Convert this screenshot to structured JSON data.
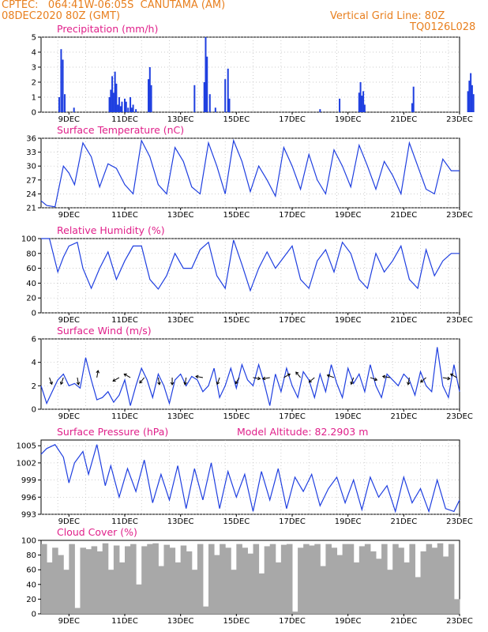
{
  "header": {
    "line1_left": "CPTEC:   064:41W-06:05S  CANUTAMA (AM)",
    "line2_left": "08DEC2020 80Z (GMT)",
    "line2_right": "Vertical Grid Line: 80Z",
    "line3_right": "TQ0126L028"
  },
  "colors": {
    "header": "#e87f1e",
    "title": "#e0208a",
    "line": "#1f3fe0",
    "cloud": "#a8a8a8",
    "grid": "#bbbbbb"
  },
  "chart_data": [
    {
      "type": "bar",
      "title": "Precipitation (mm/h)",
      "ylim": [
        0,
        5
      ],
      "yticks": [
        0,
        1,
        2,
        3,
        4,
        5
      ],
      "xticks": [
        "9DEC",
        "11DEC",
        "13DEC",
        "15DEC",
        "17DEC",
        "19DEC",
        "21DEC",
        "23DEC"
      ],
      "x": [
        0.65,
        0.72,
        0.78,
        0.85,
        1.18,
        2.45,
        2.5,
        2.55,
        2.6,
        2.65,
        2.7,
        2.75,
        2.8,
        2.85,
        2.9,
        3.0,
        3.05,
        3.12,
        3.2,
        3.25,
        3.3,
        3.4,
        3.85,
        3.9,
        3.95,
        5.5,
        5.85,
        5.9,
        5.95,
        6.05,
        6.25,
        6.6,
        6.7,
        6.75,
        10.0,
        10.7,
        11.4,
        11.45,
        11.5,
        11.55,
        11.6,
        13.3,
        13.35,
        15.3,
        15.35,
        15.4,
        15.45,
        15.5
      ],
      "values": [
        1.0,
        4.2,
        3.5,
        1.2,
        0.3,
        1.0,
        1.5,
        2.4,
        1.3,
        2.7,
        1.9,
        0.5,
        1.0,
        0.4,
        0.7,
        0.9,
        0.7,
        0.3,
        1.0,
        0.3,
        0.5,
        0.2,
        2.2,
        3.0,
        1.8,
        1.8,
        2.0,
        5.0,
        3.7,
        1.2,
        0.3,
        2.2,
        2.9,
        0.9,
        0.2,
        0.9,
        1.3,
        2.0,
        1.1,
        1.4,
        0.5,
        0.6,
        1.7,
        1.4,
        2.1,
        2.6,
        1.8,
        1.2
      ]
    },
    {
      "type": "line",
      "title": "Surface Temperature (nC)",
      "ylim": [
        21,
        36
      ],
      "yticks": [
        21,
        24,
        27,
        30,
        33,
        36
      ],
      "xticks": [
        "9DEC",
        "11DEC",
        "13DEC",
        "15DEC",
        "17DEC",
        "19DEC",
        "21DEC",
        "23DEC"
      ],
      "x": [
        0,
        0.2,
        0.5,
        0.8,
        1.0,
        1.2,
        1.5,
        1.8,
        2.1,
        2.4,
        2.7,
        3.0,
        3.3,
        3.6,
        3.9,
        4.2,
        4.5,
        4.8,
        5.1,
        5.4,
        5.7,
        6.0,
        6.3,
        6.6,
        6.9,
        7.2,
        7.5,
        7.8,
        8.1,
        8.4,
        8.7,
        9.0,
        9.3,
        9.6,
        9.9,
        10.2,
        10.5,
        10.8,
        11.1,
        11.4,
        11.7,
        12.0,
        12.3,
        12.6,
        12.9,
        13.2,
        13.5,
        13.8,
        14.1,
        14.4,
        14.7,
        15.0
      ],
      "values": [
        22.5,
        21.5,
        21.2,
        30.0,
        28.5,
        26.0,
        35.0,
        32.0,
        25.5,
        30.5,
        29.5,
        26.0,
        24.0,
        35.5,
        32.0,
        26.0,
        24.0,
        34.0,
        31.0,
        25.5,
        24.0,
        35.0,
        30.0,
        24.0,
        35.5,
        31.0,
        24.5,
        30.0,
        27.0,
        23.5,
        34.0,
        30.0,
        25.0,
        32.5,
        27.0,
        24.0,
        33.5,
        30.0,
        25.5,
        34.5,
        30.0,
        25.0,
        31.0,
        28.0,
        24.0,
        35.0,
        30.0,
        25.0,
        24.0,
        31.5,
        29.0,
        29.0
      ]
    },
    {
      "type": "line",
      "title": "Relative Humidity (%)",
      "ylim": [
        0,
        100
      ],
      "yticks": [
        0,
        20,
        40,
        60,
        80,
        100
      ],
      "xticks": [
        "9DEC",
        "11DEC",
        "13DEC",
        "15DEC",
        "17DEC",
        "19DEC",
        "21DEC",
        "23DEC"
      ],
      "x": [
        0,
        0.3,
        0.6,
        0.8,
        1.0,
        1.3,
        1.5,
        1.8,
        2.1,
        2.4,
        2.7,
        3.0,
        3.3,
        3.6,
        3.9,
        4.2,
        4.5,
        4.8,
        5.1,
        5.4,
        5.7,
        6.0,
        6.3,
        6.6,
        6.9,
        7.2,
        7.5,
        7.8,
        8.1,
        8.4,
        8.7,
        9.0,
        9.3,
        9.6,
        9.9,
        10.2,
        10.5,
        10.8,
        11.1,
        11.4,
        11.7,
        12.0,
        12.3,
        12.6,
        12.9,
        13.2,
        13.5,
        13.8,
        14.1,
        14.4,
        14.7,
        15.0
      ],
      "values": [
        100,
        100,
        55,
        75,
        90,
        95,
        60,
        33,
        60,
        82,
        45,
        70,
        90,
        90,
        45,
        32,
        50,
        80,
        60,
        60,
        85,
        95,
        50,
        33,
        98,
        65,
        30,
        60,
        82,
        60,
        75,
        90,
        45,
        33,
        70,
        85,
        55,
        95,
        80,
        45,
        33,
        80,
        55,
        70,
        90,
        45,
        33,
        85,
        50,
        70,
        80,
        80
      ]
    },
    {
      "type": "line",
      "title": "Surface Wind (m/s)",
      "ylim": [
        0,
        6
      ],
      "yticks": [
        0,
        2,
        4,
        6
      ],
      "xticks": [
        "9DEC",
        "11DEC",
        "13DEC",
        "15DEC",
        "17DEC",
        "19DEC",
        "21DEC",
        "23DEC"
      ],
      "x": [
        0,
        0.2,
        0.4,
        0.6,
        0.8,
        1.0,
        1.2,
        1.4,
        1.6,
        1.8,
        2.0,
        2.2,
        2.4,
        2.6,
        2.8,
        3.0,
        3.2,
        3.4,
        3.6,
        3.8,
        4.0,
        4.2,
        4.4,
        4.6,
        4.8,
        5.0,
        5.2,
        5.4,
        5.6,
        5.8,
        6.0,
        6.2,
        6.4,
        6.6,
        6.8,
        7.0,
        7.2,
        7.4,
        7.6,
        7.8,
        8.0,
        8.2,
        8.4,
        8.6,
        8.8,
        9.0,
        9.2,
        9.4,
        9.6,
        9.8,
        10.0,
        10.2,
        10.4,
        10.6,
        10.8,
        11.0,
        11.2,
        11.4,
        11.6,
        11.8,
        12.0,
        12.2,
        12.4,
        12.6,
        12.8,
        13.0,
        13.2,
        13.4,
        13.6,
        13.8,
        14.0,
        14.2,
        14.4,
        14.6,
        14.8,
        15.0
      ],
      "values": [
        2.0,
        0.5,
        1.5,
        2.5,
        3.0,
        2.0,
        2.2,
        1.8,
        4.4,
        2.5,
        0.8,
        1.0,
        1.5,
        0.6,
        1.2,
        2.5,
        0.3,
        2.0,
        3.5,
        2.5,
        1.0,
        3.0,
        2.0,
        0.5,
        2.5,
        3.0,
        2.0,
        2.8,
        2.5,
        1.5,
        2.0,
        3.5,
        1.0,
        2.0,
        3.5,
        1.8,
        3.8,
        2.5,
        2.0,
        3.8,
        2.2,
        0.3,
        3.0,
        1.5,
        3.5,
        2.0,
        1.0,
        3.2,
        2.5,
        1.0,
        3.0,
        1.5,
        3.8,
        2.2,
        1.0,
        3.5,
        2.2,
        3.0,
        1.5,
        3.8,
        2.0,
        1.0,
        3.0,
        2.5,
        2.0,
        3.0,
        2.5,
        1.2,
        3.2,
        2.0,
        1.5,
        5.3,
        2.0,
        1.0,
        3.8,
        1.5
      ]
    },
    {
      "type": "line",
      "title": "Surface Pressure (hPa)",
      "annotation": "Model Altitude: 82.2903 m",
      "ylim": [
        993,
        1006
      ],
      "yticks": [
        993,
        996,
        999,
        1002,
        1005
      ],
      "xticks": [
        "9DEC",
        "11DEC",
        "13DEC",
        "15DEC",
        "17DEC",
        "19DEC",
        "21DEC",
        "23DEC"
      ],
      "x": [
        0,
        0.2,
        0.5,
        0.8,
        1.0,
        1.2,
        1.5,
        1.7,
        2.0,
        2.3,
        2.5,
        2.8,
        3.1,
        3.4,
        3.7,
        4.0,
        4.3,
        4.6,
        4.9,
        5.2,
        5.5,
        5.8,
        6.1,
        6.4,
        6.7,
        7.0,
        7.3,
        7.6,
        7.9,
        8.2,
        8.5,
        8.8,
        9.1,
        9.4,
        9.7,
        10.0,
        10.3,
        10.6,
        10.9,
        11.2,
        11.5,
        11.8,
        12.1,
        12.4,
        12.7,
        13.0,
        13.3,
        13.6,
        13.9,
        14.2,
        14.5,
        14.8,
        15.0
      ],
      "values": [
        1003.5,
        1004.5,
        1005.2,
        1003.0,
        998.5,
        1002.0,
        1004.0,
        1000.0,
        1005.2,
        998.0,
        1001.5,
        996.0,
        1001.0,
        997.0,
        1002.5,
        995.0,
        1000.0,
        995.5,
        1001.5,
        994.0,
        1001.0,
        995.5,
        1002.0,
        994.0,
        1000.5,
        996.0,
        1000.0,
        993.5,
        1000.5,
        995.5,
        1001.0,
        994.0,
        999.5,
        997.0,
        1000.0,
        994.5,
        997.5,
        999.5,
        995.0,
        999.0,
        993.8,
        999.5,
        996.0,
        998.0,
        993.5,
        999.5,
        995.0,
        997.5,
        993.5,
        999.0,
        994.0,
        993.5,
        995.5
      ]
    },
    {
      "type": "bar",
      "title": "Cloud Cover (%)",
      "ylim": [
        0,
        100
      ],
      "yticks": [
        0,
        20,
        40,
        60,
        80,
        100
      ],
      "xticks": [
        "9DEC",
        "11DEC",
        "13DEC",
        "15DEC",
        "17DEC",
        "19DEC",
        "21DEC",
        "23DEC"
      ],
      "x": [
        0.1,
        0.3,
        0.5,
        0.7,
        0.9,
        1.1,
        1.3,
        1.5,
        1.7,
        1.9,
        2.1,
        2.3,
        2.5,
        2.7,
        2.9,
        3.1,
        3.3,
        3.5,
        3.7,
        3.9,
        4.1,
        4.3,
        4.5,
        4.7,
        4.9,
        5.1,
        5.3,
        5.5,
        5.7,
        5.9,
        6.1,
        6.3,
        6.5,
        6.7,
        6.9,
        7.1,
        7.3,
        7.5,
        7.7,
        7.9,
        8.1,
        8.3,
        8.5,
        8.7,
        8.9,
        9.1,
        9.3,
        9.5,
        9.7,
        9.9,
        10.1,
        10.3,
        10.5,
        10.7,
        10.9,
        11.1,
        11.3,
        11.5,
        11.7,
        11.9,
        12.1,
        12.3,
        12.5,
        12.7,
        12.9,
        13.1,
        13.3,
        13.5,
        13.7,
        13.9,
        14.1,
        14.3,
        14.5,
        14.7,
        14.9
      ],
      "values": [
        95,
        70,
        90,
        80,
        60,
        95,
        8,
        90,
        88,
        92,
        85,
        96,
        60,
        93,
        70,
        92,
        95,
        40,
        92,
        95,
        96,
        65,
        94,
        90,
        70,
        93,
        85,
        60,
        95,
        10,
        95,
        80,
        95,
        90,
        60,
        95,
        90,
        82,
        95,
        55,
        92,
        95,
        70,
        94,
        95,
        3,
        90,
        95,
        93,
        95,
        65,
        95,
        90,
        80,
        95,
        95,
        70,
        92,
        95,
        85,
        75,
        95,
        60,
        95,
        90,
        70,
        95,
        50,
        85,
        95,
        90,
        96,
        78,
        95,
        20
      ]
    }
  ],
  "wind_vectors": [
    {
      "x": 0.3,
      "dir": 160
    },
    {
      "x": 0.8,
      "dir": 200
    },
    {
      "x": 1.3,
      "dir": 170
    },
    {
      "x": 2.0,
      "dir": 10
    },
    {
      "x": 2.8,
      "dir": 240
    },
    {
      "x": 3.2,
      "dir": 300
    },
    {
      "x": 3.7,
      "dir": 220
    },
    {
      "x": 4.2,
      "dir": 170
    },
    {
      "x": 4.7,
      "dir": 180
    },
    {
      "x": 5.2,
      "dir": 190
    },
    {
      "x": 5.8,
      "dir": 280
    },
    {
      "x": 6.4,
      "dir": 200
    },
    {
      "x": 7.1,
      "dir": 210
    },
    {
      "x": 7.6,
      "dir": 100
    },
    {
      "x": 8.2,
      "dir": 260
    },
    {
      "x": 8.7,
      "dir": 60
    },
    {
      "x": 9.3,
      "dir": 320
    },
    {
      "x": 9.8,
      "dir": 230
    },
    {
      "x": 10.5,
      "dir": 290
    },
    {
      "x": 11.2,
      "dir": 200
    },
    {
      "x": 11.8,
      "dir": 110
    },
    {
      "x": 12.5,
      "dir": 280
    },
    {
      "x": 13.2,
      "dir": 190
    },
    {
      "x": 13.8,
      "dir": 230
    },
    {
      "x": 14.4,
      "dir": 100
    },
    {
      "x": 14.9,
      "dir": 300
    }
  ]
}
